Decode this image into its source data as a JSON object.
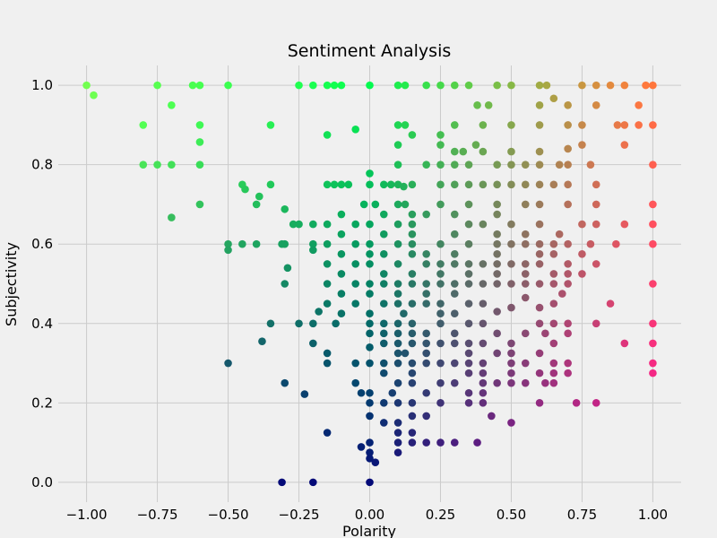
{
  "chart_data": {
    "type": "scatter",
    "title": "Sentiment Analysis",
    "xlabel": "Polarity",
    "ylabel": "Subjectivity",
    "xlim": [
      -1.1,
      1.1
    ],
    "ylim": [
      -0.05,
      1.05
    ],
    "xticks": [
      -1.0,
      -0.75,
      -0.5,
      -0.25,
      0.0,
      0.25,
      0.5,
      0.75,
      1.0
    ],
    "xtick_labels": [
      "−1.00",
      "−0.75",
      "−0.50",
      "−0.25",
      "0.00",
      "0.25",
      "0.50",
      "0.75",
      "1.00"
    ],
    "yticks": [
      0.0,
      0.2,
      0.4,
      0.6,
      0.8,
      1.0
    ],
    "ytick_labels": [
      "0.0",
      "0.2",
      "0.4",
      "0.6",
      "0.8",
      "1.0"
    ],
    "grid": true,
    "colormap": "colored by polarity and subjectivity",
    "background": "#f0f0f0",
    "grid_color": "#cbcbcb",
    "points": [
      [
        -1.0,
        1.0
      ],
      [
        -0.975,
        0.975
      ],
      [
        -0.75,
        1.0
      ],
      [
        -0.625,
        1.0
      ],
      [
        -0.6,
        1.0
      ],
      [
        -0.5,
        1.0
      ],
      [
        -0.7,
        0.95
      ],
      [
        -0.8,
        0.9
      ],
      [
        -0.6,
        0.9
      ],
      [
        -0.6,
        0.857
      ],
      [
        -0.8,
        0.8
      ],
      [
        -0.75,
        0.8
      ],
      [
        -0.7,
        0.8
      ],
      [
        -0.6,
        0.8
      ],
      [
        -0.6,
        0.7
      ],
      [
        -0.7,
        0.667
      ],
      [
        -0.35,
        0.9
      ],
      [
        -0.15,
        0.875
      ],
      [
        -0.05,
        0.889
      ],
      [
        -0.45,
        0.75
      ],
      [
        -0.44,
        0.738
      ],
      [
        -0.4,
        0.7
      ],
      [
        -0.39,
        0.72
      ],
      [
        -0.35,
        0.75
      ],
      [
        -0.3,
        0.688
      ],
      [
        -0.27,
        0.65
      ],
      [
        -0.25,
        0.65
      ],
      [
        -0.2,
        0.65
      ],
      [
        -0.5,
        0.6
      ],
      [
        -0.5,
        0.585
      ],
      [
        -0.45,
        0.6
      ],
      [
        -0.4,
        0.6
      ],
      [
        -0.3,
        0.6
      ],
      [
        -0.31,
        0.6
      ],
      [
        -0.29,
        0.54
      ],
      [
        -0.3,
        0.5
      ],
      [
        -0.2,
        0.6
      ],
      [
        -0.2,
        0.585
      ],
      [
        -0.25,
        0.4
      ],
      [
        -0.2,
        0.4
      ],
      [
        -0.18,
        0.43
      ],
      [
        -0.35,
        0.4
      ],
      [
        -0.2,
        0.35
      ],
      [
        -0.38,
        0.355
      ],
      [
        -0.5,
        0.3
      ],
      [
        -0.3,
        0.25
      ],
      [
        -0.23,
        0.222
      ],
      [
        -0.15,
        0.125
      ],
      [
        -0.31,
        0.0
      ],
      [
        -0.2,
        0.0
      ],
      [
        -0.25,
        1.0
      ],
      [
        -0.2,
        1.0
      ],
      [
        -0.15,
        1.0
      ],
      [
        -0.125,
        1.0
      ],
      [
        -0.1,
        1.0
      ],
      [
        0.0,
        1.0
      ],
      [
        0.1,
        1.0
      ],
      [
        0.125,
        1.0
      ],
      [
        0.2,
        1.0
      ],
      [
        0.25,
        1.0
      ],
      [
        0.3,
        1.0
      ],
      [
        0.35,
        1.0
      ],
      [
        0.45,
        1.0
      ],
      [
        0.5,
        1.0
      ],
      [
        0.6,
        1.0
      ],
      [
        0.625,
        1.0
      ],
      [
        0.75,
        1.0
      ],
      [
        0.8,
        1.0
      ],
      [
        0.85,
        1.0
      ],
      [
        0.9,
        1.0
      ],
      [
        0.975,
        1.0
      ],
      [
        1.0,
        1.0
      ],
      [
        0.38,
        0.95
      ],
      [
        0.42,
        0.95
      ],
      [
        0.6,
        0.95
      ],
      [
        0.65,
        0.967
      ],
      [
        0.7,
        0.95
      ],
      [
        0.8,
        0.95
      ],
      [
        0.95,
        0.95
      ],
      [
        0.1,
        0.9
      ],
      [
        0.125,
        0.9
      ],
      [
        0.3,
        0.9
      ],
      [
        0.4,
        0.9
      ],
      [
        0.5,
        0.9
      ],
      [
        0.6,
        0.9
      ],
      [
        0.7,
        0.9
      ],
      [
        0.75,
        0.9
      ],
      [
        0.875,
        0.9
      ],
      [
        0.9,
        0.9
      ],
      [
        0.95,
        0.9
      ],
      [
        1.0,
        0.9
      ],
      [
        0.15,
        0.875
      ],
      [
        0.25,
        0.875
      ],
      [
        0.1,
        0.85
      ],
      [
        0.25,
        0.85
      ],
      [
        0.375,
        0.85
      ],
      [
        0.4,
        0.833
      ],
      [
        0.3,
        0.833
      ],
      [
        0.33,
        0.833
      ],
      [
        0.5,
        0.833
      ],
      [
        0.6,
        0.833
      ],
      [
        0.7,
        0.84
      ],
      [
        0.75,
        0.85
      ],
      [
        0.9,
        0.85
      ],
      [
        0.0,
        0.778
      ],
      [
        0.1,
        0.8
      ],
      [
        0.2,
        0.8
      ],
      [
        0.25,
        0.8
      ],
      [
        0.3,
        0.8
      ],
      [
        0.35,
        0.8
      ],
      [
        0.45,
        0.8
      ],
      [
        0.5,
        0.8
      ],
      [
        0.55,
        0.8
      ],
      [
        0.6,
        0.8
      ],
      [
        0.67,
        0.8
      ],
      [
        0.7,
        0.8
      ],
      [
        0.78,
        0.8
      ],
      [
        1.0,
        0.8
      ],
      [
        0.0,
        0.75
      ],
      [
        0.05,
        0.75
      ],
      [
        0.075,
        0.75
      ],
      [
        0.1,
        0.75
      ],
      [
        0.12,
        0.745
      ],
      [
        0.15,
        0.75
      ],
      [
        -0.15,
        0.75
      ],
      [
        -0.125,
        0.75
      ],
      [
        -0.1,
        0.75
      ],
      [
        -0.075,
        0.75
      ],
      [
        0.25,
        0.75
      ],
      [
        0.3,
        0.75
      ],
      [
        0.35,
        0.75
      ],
      [
        0.4,
        0.75
      ],
      [
        0.45,
        0.75
      ],
      [
        0.5,
        0.75
      ],
      [
        0.55,
        0.75
      ],
      [
        0.6,
        0.75
      ],
      [
        0.65,
        0.75
      ],
      [
        0.7,
        0.75
      ],
      [
        0.8,
        0.75
      ],
      [
        -0.02,
        0.7
      ],
      [
        0.02,
        0.7
      ],
      [
        0.1,
        0.7
      ],
      [
        0.125,
        0.7
      ],
      [
        0.25,
        0.7
      ],
      [
        0.35,
        0.7
      ],
      [
        0.45,
        0.7
      ],
      [
        0.55,
        0.7
      ],
      [
        0.6,
        0.7
      ],
      [
        0.7,
        0.7
      ],
      [
        0.8,
        0.7
      ],
      [
        1.0,
        0.7
      ],
      [
        -0.1,
        0.675
      ],
      [
        0.05,
        0.675
      ],
      [
        0.15,
        0.675
      ],
      [
        0.2,
        0.675
      ],
      [
        0.3,
        0.675
      ],
      [
        0.45,
        0.675
      ],
      [
        -0.15,
        0.65
      ],
      [
        -0.05,
        0.65
      ],
      [
        0.0,
        0.65
      ],
      [
        0.1,
        0.65
      ],
      [
        0.15,
        0.65
      ],
      [
        0.35,
        0.65
      ],
      [
        0.4,
        0.65
      ],
      [
        0.5,
        0.65
      ],
      [
        0.6,
        0.65
      ],
      [
        0.75,
        0.65
      ],
      [
        0.8,
        0.65
      ],
      [
        0.9,
        0.65
      ],
      [
        1.0,
        0.65
      ],
      [
        -0.1,
        0.625
      ],
      [
        0.05,
        0.625
      ],
      [
        0.15,
        0.625
      ],
      [
        0.3,
        0.625
      ],
      [
        0.45,
        0.625
      ],
      [
        0.55,
        0.625
      ],
      [
        0.67,
        0.625
      ],
      [
        -0.15,
        0.6
      ],
      [
        -0.05,
        0.6
      ],
      [
        0.0,
        0.6
      ],
      [
        0.1,
        0.6
      ],
      [
        0.15,
        0.6
      ],
      [
        0.25,
        0.6
      ],
      [
        0.35,
        0.6
      ],
      [
        0.45,
        0.6
      ],
      [
        0.5,
        0.6
      ],
      [
        0.55,
        0.6
      ],
      [
        0.6,
        0.6
      ],
      [
        0.65,
        0.6
      ],
      [
        0.7,
        0.6
      ],
      [
        0.78,
        0.6
      ],
      [
        0.87,
        0.6
      ],
      [
        1.0,
        0.6
      ],
      [
        -0.1,
        0.575
      ],
      [
        0.0,
        0.575
      ],
      [
        0.05,
        0.575
      ],
      [
        0.15,
        0.575
      ],
      [
        0.2,
        0.575
      ],
      [
        0.3,
        0.575
      ],
      [
        0.45,
        0.575
      ],
      [
        0.6,
        0.575
      ],
      [
        0.65,
        0.575
      ],
      [
        0.75,
        0.575
      ],
      [
        -0.15,
        0.55
      ],
      [
        -0.05,
        0.55
      ],
      [
        0.0,
        0.55
      ],
      [
        0.1,
        0.55
      ],
      [
        0.2,
        0.55
      ],
      [
        0.25,
        0.55
      ],
      [
        0.3,
        0.55
      ],
      [
        0.35,
        0.55
      ],
      [
        0.4,
        0.55
      ],
      [
        0.45,
        0.55
      ],
      [
        0.5,
        0.55
      ],
      [
        0.55,
        0.55
      ],
      [
        0.6,
        0.55
      ],
      [
        0.7,
        0.55
      ],
      [
        0.8,
        0.55
      ],
      [
        -0.1,
        0.525
      ],
      [
        0.05,
        0.525
      ],
      [
        0.15,
        0.525
      ],
      [
        0.25,
        0.525
      ],
      [
        0.35,
        0.525
      ],
      [
        0.45,
        0.525
      ],
      [
        0.55,
        0.525
      ],
      [
        0.65,
        0.525
      ],
      [
        0.7,
        0.525
      ],
      [
        0.75,
        0.525
      ],
      [
        -0.15,
        0.5
      ],
      [
        -0.05,
        0.5
      ],
      [
        0.0,
        0.5
      ],
      [
        0.05,
        0.5
      ],
      [
        0.1,
        0.5
      ],
      [
        0.15,
        0.5
      ],
      [
        0.2,
        0.5
      ],
      [
        0.25,
        0.5
      ],
      [
        0.3,
        0.5
      ],
      [
        0.35,
        0.5
      ],
      [
        0.4,
        0.5
      ],
      [
        0.45,
        0.5
      ],
      [
        0.5,
        0.5
      ],
      [
        0.55,
        0.5
      ],
      [
        0.6,
        0.5
      ],
      [
        0.65,
        0.5
      ],
      [
        0.7,
        0.5
      ],
      [
        1.0,
        0.5
      ],
      [
        -0.1,
        0.475
      ],
      [
        0.0,
        0.475
      ],
      [
        0.1,
        0.475
      ],
      [
        0.2,
        0.475
      ],
      [
        0.3,
        0.475
      ],
      [
        0.55,
        0.465
      ],
      [
        0.68,
        0.475
      ],
      [
        -0.15,
        0.45
      ],
      [
        -0.05,
        0.45
      ],
      [
        0.05,
        0.45
      ],
      [
        0.1,
        0.45
      ],
      [
        0.15,
        0.45
      ],
      [
        0.2,
        0.45
      ],
      [
        0.25,
        0.45
      ],
      [
        0.35,
        0.45
      ],
      [
        0.4,
        0.45
      ],
      [
        0.5,
        0.44
      ],
      [
        0.6,
        0.44
      ],
      [
        0.65,
        0.45
      ],
      [
        0.85,
        0.45
      ],
      [
        -0.1,
        0.425
      ],
      [
        0.0,
        0.425
      ],
      [
        0.12,
        0.425
      ],
      [
        0.25,
        0.425
      ],
      [
        0.3,
        0.425
      ],
      [
        0.45,
        0.43
      ],
      [
        -0.12,
        0.4
      ],
      [
        0.0,
        0.4
      ],
      [
        0.05,
        0.4
      ],
      [
        0.1,
        0.4
      ],
      [
        0.15,
        0.4
      ],
      [
        0.25,
        0.4
      ],
      [
        0.35,
        0.4
      ],
      [
        0.4,
        0.4
      ],
      [
        0.6,
        0.4
      ],
      [
        0.65,
        0.4
      ],
      [
        0.7,
        0.4
      ],
      [
        0.8,
        0.4
      ],
      [
        1.0,
        0.4
      ],
      [
        0.0,
        0.375
      ],
      [
        0.05,
        0.375
      ],
      [
        0.1,
        0.375
      ],
      [
        0.15,
        0.375
      ],
      [
        0.2,
        0.375
      ],
      [
        0.3,
        0.375
      ],
      [
        0.45,
        0.375
      ],
      [
        0.55,
        0.375
      ],
      [
        0.62,
        0.375
      ],
      [
        0.7,
        0.375
      ],
      [
        0.05,
        0.35
      ],
      [
        0.1,
        0.35
      ],
      [
        0.15,
        0.35
      ],
      [
        0.2,
        0.35
      ],
      [
        0.25,
        0.35
      ],
      [
        0.3,
        0.35
      ],
      [
        0.35,
        0.35
      ],
      [
        0.4,
        0.35
      ],
      [
        0.5,
        0.35
      ],
      [
        0.65,
        0.35
      ],
      [
        0.9,
        0.35
      ],
      [
        1.0,
        0.35
      ],
      [
        -0.15,
        0.325
      ],
      [
        0.0,
        0.34
      ],
      [
        0.1,
        0.325
      ],
      [
        0.125,
        0.325
      ],
      [
        0.2,
        0.325
      ],
      [
        0.35,
        0.325
      ],
      [
        0.45,
        0.325
      ],
      [
        0.5,
        0.325
      ],
      [
        0.6,
        0.325
      ],
      [
        -0.05,
        0.3
      ],
      [
        -0.15,
        0.3
      ],
      [
        0.0,
        0.3
      ],
      [
        0.05,
        0.3
      ],
      [
        0.1,
        0.3
      ],
      [
        0.15,
        0.3
      ],
      [
        0.2,
        0.3
      ],
      [
        0.25,
        0.3
      ],
      [
        0.3,
        0.3
      ],
      [
        0.35,
        0.3
      ],
      [
        0.4,
        0.3
      ],
      [
        0.5,
        0.3
      ],
      [
        0.55,
        0.3
      ],
      [
        0.65,
        0.3
      ],
      [
        0.7,
        0.3
      ],
      [
        1.0,
        0.3
      ],
      [
        0.05,
        0.275
      ],
      [
        0.15,
        0.275
      ],
      [
        0.35,
        0.275
      ],
      [
        0.4,
        0.275
      ],
      [
        0.5,
        0.275
      ],
      [
        0.6,
        0.275
      ],
      [
        0.65,
        0.275
      ],
      [
        0.7,
        0.275
      ],
      [
        1.0,
        0.275
      ],
      [
        -0.05,
        0.25
      ],
      [
        0.1,
        0.25
      ],
      [
        0.15,
        0.25
      ],
      [
        0.25,
        0.25
      ],
      [
        0.3,
        0.25
      ],
      [
        0.4,
        0.25
      ],
      [
        0.45,
        0.25
      ],
      [
        0.5,
        0.25
      ],
      [
        0.55,
        0.25
      ],
      [
        0.62,
        0.25
      ],
      [
        0.65,
        0.25
      ],
      [
        -0.03,
        0.225
      ],
      [
        0.0,
        0.225
      ],
      [
        0.08,
        0.225
      ],
      [
        0.2,
        0.225
      ],
      [
        0.35,
        0.225
      ],
      [
        0.4,
        0.225
      ],
      [
        0.0,
        0.2
      ],
      [
        0.05,
        0.2
      ],
      [
        0.1,
        0.2
      ],
      [
        0.15,
        0.2
      ],
      [
        0.25,
        0.2
      ],
      [
        0.35,
        0.2
      ],
      [
        0.4,
        0.2
      ],
      [
        0.6,
        0.2
      ],
      [
        0.73,
        0.2
      ],
      [
        0.8,
        0.2
      ],
      [
        0.0,
        0.167
      ],
      [
        0.05,
        0.15
      ],
      [
        0.1,
        0.15
      ],
      [
        0.15,
        0.167
      ],
      [
        0.2,
        0.167
      ],
      [
        0.43,
        0.167
      ],
      [
        0.5,
        0.15
      ],
      [
        0.1,
        0.125
      ],
      [
        0.15,
        0.125
      ],
      [
        0.0,
        0.1
      ],
      [
        0.1,
        0.1
      ],
      [
        0.15,
        0.1
      ],
      [
        0.2,
        0.1
      ],
      [
        0.25,
        0.1
      ],
      [
        0.3,
        0.1
      ],
      [
        0.38,
        0.1
      ],
      [
        -0.03,
        0.089
      ],
      [
        0.0,
        0.075
      ],
      [
        0.1,
        0.075
      ],
      [
        0.0,
        0.06
      ],
      [
        0.02,
        0.05
      ],
      [
        0.0,
        0.0
      ]
    ]
  }
}
